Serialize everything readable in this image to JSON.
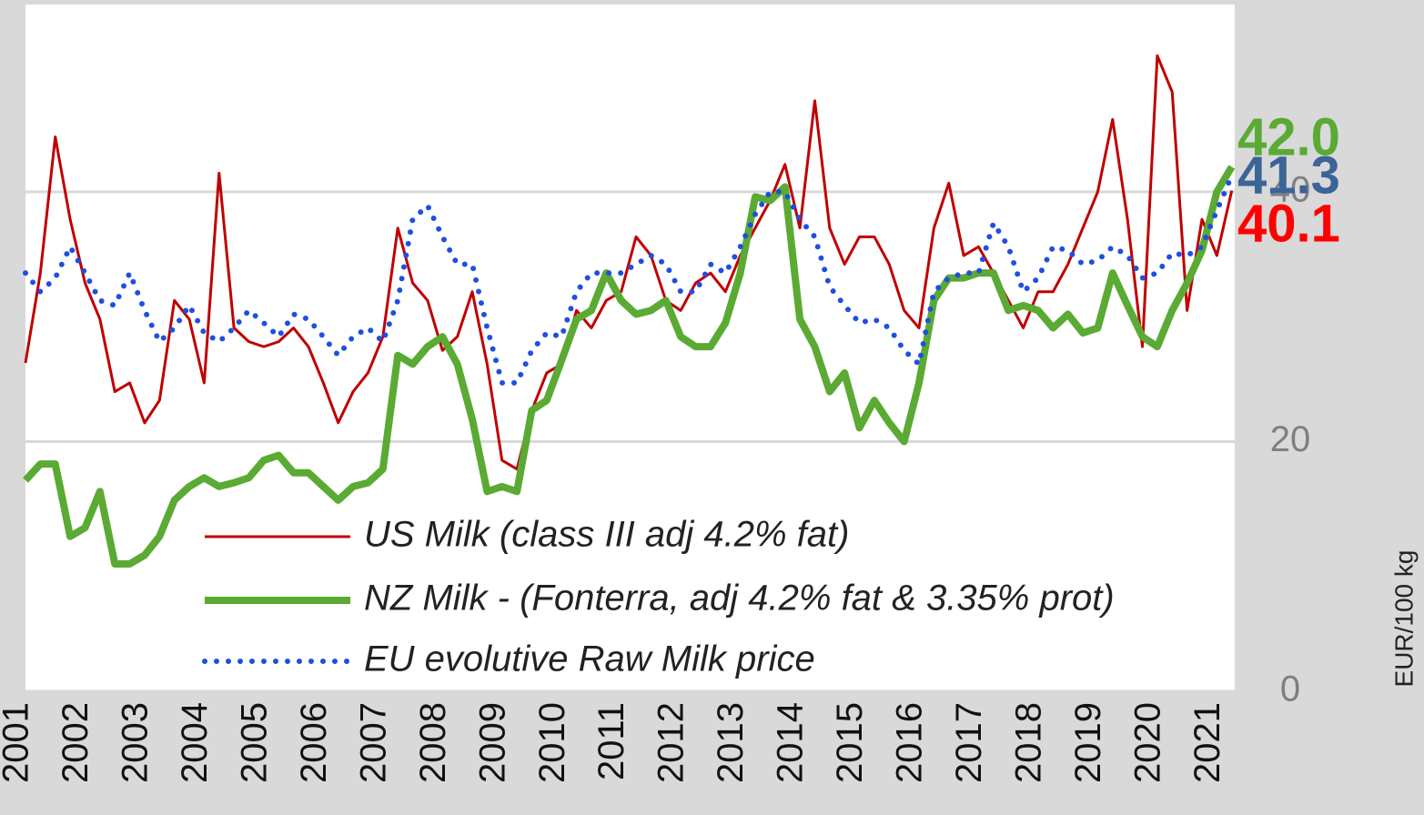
{
  "chart_data": {
    "type": "line",
    "y_axis_label": "EUR/100 kg",
    "xlim": [
      2001,
      2021.3
    ],
    "xticks": [
      2001,
      2002,
      2003,
      2004,
      2005,
      2006,
      2007,
      2008,
      2009,
      2010,
      2011,
      2012,
      2013,
      2014,
      2015,
      2016,
      2017,
      2018,
      2019,
      2020,
      2021
    ],
    "ylim": [
      0,
      55
    ],
    "yticks": [
      0,
      20,
      40
    ],
    "grid": true,
    "legend": "bottom-left",
    "x": [
      2001,
      2001.25,
      2001.5,
      2001.75,
      2002,
      2002.25,
      2002.5,
      2002.75,
      2003,
      2003.25,
      2003.5,
      2003.75,
      2004,
      2004.25,
      2004.5,
      2004.75,
      2005,
      2005.25,
      2005.5,
      2005.75,
      2006,
      2006.25,
      2006.5,
      2006.75,
      2007,
      2007.25,
      2007.5,
      2007.75,
      2008,
      2008.25,
      2008.5,
      2008.75,
      2009,
      2009.25,
      2009.5,
      2009.75,
      2010,
      2010.25,
      2010.5,
      2010.75,
      2011,
      2011.25,
      2011.5,
      2011.75,
      2012,
      2012.25,
      2012.5,
      2012.75,
      2013,
      2013.25,
      2013.5,
      2013.75,
      2014,
      2014.25,
      2014.5,
      2014.75,
      2015,
      2015.25,
      2015.5,
      2015.75,
      2016,
      2016.25,
      2016.5,
      2016.75,
      2017,
      2017.25,
      2017.5,
      2017.75,
      2018,
      2018.25,
      2018.5,
      2018.75,
      2019,
      2019.25,
      2019.5,
      2019.75,
      2020,
      2020.25,
      2020.5,
      2020.75,
      2021,
      2021.25
    ],
    "series": [
      {
        "name": "US Milk (class III adj 4.2% fat)",
        "color": "#c00000",
        "style": "solid",
        "width": 3,
        "end_label": "40.1",
        "end_label_color": "#ff0000",
        "values": [
          26.3,
          33.5,
          44.4,
          37.8,
          32.7,
          29.8,
          24,
          24.7,
          21.5,
          23.3,
          31.3,
          29.8,
          24.7,
          41.5,
          29.1,
          28,
          27.6,
          28,
          29.1,
          27.6,
          24.7,
          21.5,
          24,
          25.5,
          28.4,
          37.1,
          32.7,
          31.3,
          27.3,
          28.4,
          32,
          26.2,
          18.5,
          17.8,
          22.5,
          25.5,
          26.2,
          30.5,
          29.1,
          31.3,
          32,
          36.4,
          34.9,
          31.3,
          30.5,
          32.7,
          33.5,
          32,
          34.9,
          37.1,
          39.3,
          42.2,
          37.1,
          47.3,
          37.1,
          34.2,
          36.4,
          36.4,
          34.2,
          30.5,
          29.1,
          37.1,
          40.7,
          34.9,
          35.6,
          33.5,
          31.3,
          29.1,
          32,
          32,
          34.2,
          37.1,
          40,
          45.8,
          37.8,
          27.6,
          50.9,
          48,
          30.5,
          37.8,
          34.9,
          40.1
        ]
      },
      {
        "name": "NZ Milk - (Fonterra, adj 4.2% fat & 3.35% prot)",
        "color": "#5aaa33",
        "style": "solid",
        "width": 8,
        "end_label": "42.0",
        "end_label_color": "#5aaa33",
        "values": [
          16.9,
          18.2,
          18.2,
          12.4,
          13.1,
          16,
          10.2,
          10.2,
          10.9,
          12.4,
          15.3,
          16.4,
          17.1,
          16.4,
          16.7,
          17.1,
          18.5,
          18.9,
          17.5,
          17.5,
          16.4,
          15.3,
          16.4,
          16.7,
          17.8,
          26.9,
          26.2,
          27.6,
          28.4,
          26.2,
          21.8,
          16,
          16.4,
          16,
          22.5,
          23.3,
          26.5,
          29.8,
          30.5,
          33.5,
          31.3,
          30.2,
          30.5,
          31.3,
          28.4,
          27.6,
          27.6,
          29.5,
          33.5,
          39.6,
          39.3,
          40.4,
          29.8,
          27.6,
          24,
          25.5,
          21.1,
          23.3,
          21.5,
          20,
          24.7,
          31.3,
          33.1,
          33.1,
          33.5,
          33.5,
          30.5,
          30.9,
          30.5,
          29.1,
          30.2,
          28.7,
          29.1,
          33.5,
          30.9,
          28.4,
          27.6,
          30.5,
          32.7,
          35.3,
          40,
          42.0
        ]
      },
      {
        "name": "EU evolutive Raw Milk price",
        "color": "#1f4fe0",
        "style": "dotted",
        "width": 6,
        "end_label": "41.3",
        "end_label_color": "#3c6496",
        "values": [
          33.5,
          32,
          33.1,
          35.6,
          33.5,
          31.3,
          30.9,
          33.5,
          30.5,
          28,
          29.1,
          30.9,
          28.7,
          28,
          29.1,
          30.5,
          29.5,
          28.4,
          30.2,
          29.8,
          28.4,
          26.9,
          28.4,
          29.1,
          28,
          31.3,
          37.8,
          38.9,
          36.4,
          34.2,
          34.2,
          29.1,
          24.7,
          24.7,
          27.3,
          28.7,
          28.4,
          32,
          33.5,
          33.5,
          33.5,
          34.2,
          34.9,
          34.2,
          32,
          32,
          34.2,
          33.5,
          35.6,
          38.2,
          40,
          40,
          37.8,
          36.4,
          32.4,
          30.9,
          29.5,
          29.8,
          29.1,
          27.3,
          26.2,
          32,
          33.1,
          33.5,
          33.5,
          37.5,
          35.6,
          32,
          33.1,
          35.6,
          35.3,
          34.2,
          34.5,
          35.6,
          34.9,
          33.1,
          33.5,
          35.1,
          34.9,
          35.6,
          38.5,
          41.3
        ]
      }
    ]
  }
}
